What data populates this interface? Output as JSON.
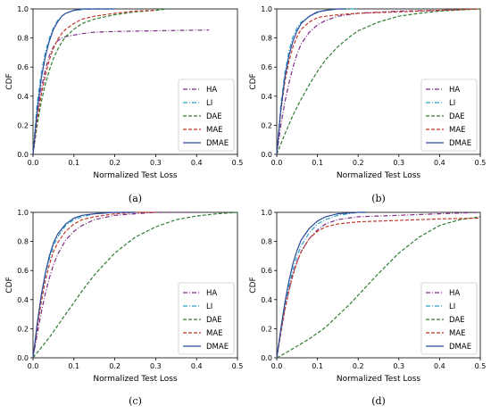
{
  "chart_data": [
    {
      "type": "line",
      "caption": "(a)",
      "xlabel": "Normalized Test Loss",
      "ylabel": "CDF",
      "xlim": [
        0,
        0.5
      ],
      "ylim": [
        0,
        1.0
      ],
      "xticks": [
        "0.0",
        "0.1",
        "0.2",
        "0.3",
        "0.4",
        "0.5"
      ],
      "yticks": [
        "0.0",
        "0.2",
        "0.4",
        "0.6",
        "0.8",
        "1.0"
      ],
      "legend_position": "lower-right",
      "series": [
        {
          "name": "HA",
          "color": "#7b2d84",
          "dash": "dashdot",
          "x": [
            0,
            0.01,
            0.02,
            0.03,
            0.04,
            0.05,
            0.06,
            0.07,
            0.08,
            0.1,
            0.12,
            0.15,
            0.2,
            0.3,
            0.43
          ],
          "y": [
            0,
            0.28,
            0.45,
            0.58,
            0.68,
            0.74,
            0.78,
            0.8,
            0.81,
            0.82,
            0.83,
            0.84,
            0.845,
            0.85,
            0.855
          ]
        },
        {
          "name": "LI",
          "color": "#2aa1c4",
          "dash": "dashdot",
          "x": [
            0,
            0.01,
            0.02,
            0.03,
            0.04,
            0.05,
            0.06,
            0.07,
            0.08,
            0.1,
            0.12,
            0.15,
            0.2
          ],
          "y": [
            0,
            0.35,
            0.56,
            0.7,
            0.8,
            0.87,
            0.92,
            0.95,
            0.97,
            0.99,
            0.995,
            1.0,
            1.0
          ]
        },
        {
          "name": "DAE",
          "color": "#2f7d32",
          "dash": "dashed",
          "x": [
            0,
            0.01,
            0.02,
            0.03,
            0.04,
            0.05,
            0.06,
            0.07,
            0.08,
            0.1,
            0.12,
            0.15,
            0.2,
            0.25,
            0.3,
            0.33
          ],
          "y": [
            0,
            0.2,
            0.36,
            0.48,
            0.58,
            0.66,
            0.72,
            0.77,
            0.81,
            0.86,
            0.9,
            0.93,
            0.96,
            0.98,
            0.99,
            1.0
          ]
        },
        {
          "name": "MAE",
          "color": "#c0392b",
          "dash": "dashed",
          "x": [
            0,
            0.01,
            0.02,
            0.03,
            0.04,
            0.05,
            0.06,
            0.07,
            0.08,
            0.1,
            0.12,
            0.15,
            0.2,
            0.25,
            0.3
          ],
          "y": [
            0,
            0.24,
            0.41,
            0.54,
            0.65,
            0.73,
            0.79,
            0.83,
            0.86,
            0.9,
            0.93,
            0.95,
            0.97,
            0.985,
            0.99
          ]
        },
        {
          "name": "DMAE",
          "color": "#2c4a9a",
          "dash": "solid",
          "x": [
            0,
            0.01,
            0.02,
            0.03,
            0.04,
            0.05,
            0.06,
            0.07,
            0.08,
            0.1,
            0.12,
            0.14,
            0.2
          ],
          "y": [
            0,
            0.3,
            0.52,
            0.67,
            0.78,
            0.86,
            0.91,
            0.95,
            0.97,
            0.99,
            1.0,
            1.0,
            1.0
          ]
        }
      ]
    },
    {
      "type": "line",
      "caption": "(b)",
      "xlabel": "Normalized Test Loss",
      "ylabel": "CDF",
      "xlim": [
        0,
        0.5
      ],
      "ylim": [
        0,
        1.0
      ],
      "xticks": [
        "0.0",
        "0.1",
        "0.2",
        "0.3",
        "0.4",
        "0.5"
      ],
      "yticks": [
        "0.0",
        "0.2",
        "0.4",
        "0.6",
        "0.8",
        "1.0"
      ],
      "legend_position": "lower-right",
      "series": [
        {
          "name": "HA",
          "color": "#7b2d84",
          "dash": "dashdot",
          "x": [
            0,
            0.01,
            0.02,
            0.03,
            0.04,
            0.05,
            0.06,
            0.08,
            0.1,
            0.12,
            0.15,
            0.2,
            0.3,
            0.4,
            0.49
          ],
          "y": [
            0,
            0.2,
            0.36,
            0.49,
            0.6,
            0.69,
            0.76,
            0.84,
            0.89,
            0.92,
            0.95,
            0.97,
            0.985,
            0.99,
            1.0
          ]
        },
        {
          "name": "LI",
          "color": "#2aa1c4",
          "dash": "dashdot",
          "x": [
            0,
            0.01,
            0.02,
            0.03,
            0.04,
            0.05,
            0.06,
            0.08,
            0.1,
            0.12,
            0.15,
            0.2
          ],
          "y": [
            0,
            0.34,
            0.56,
            0.71,
            0.81,
            0.87,
            0.91,
            0.95,
            0.975,
            0.99,
            1.0,
            1.0
          ]
        },
        {
          "name": "DAE",
          "color": "#2f7d32",
          "dash": "dashed",
          "x": [
            0,
            0.02,
            0.04,
            0.06,
            0.08,
            0.1,
            0.12,
            0.15,
            0.18,
            0.2,
            0.25,
            0.3,
            0.35,
            0.4,
            0.5
          ],
          "y": [
            0,
            0.14,
            0.27,
            0.38,
            0.48,
            0.57,
            0.65,
            0.74,
            0.81,
            0.85,
            0.91,
            0.95,
            0.97,
            0.985,
            1.0
          ]
        },
        {
          "name": "MAE",
          "color": "#c0392b",
          "dash": "dashed",
          "x": [
            0,
            0.01,
            0.02,
            0.03,
            0.04,
            0.05,
            0.06,
            0.08,
            0.1,
            0.12,
            0.15,
            0.2,
            0.3,
            0.4,
            0.5
          ],
          "y": [
            0,
            0.3,
            0.5,
            0.64,
            0.74,
            0.81,
            0.86,
            0.91,
            0.94,
            0.95,
            0.96,
            0.97,
            0.98,
            0.99,
            1.0
          ]
        },
        {
          "name": "DMAE",
          "color": "#2c4a9a",
          "dash": "solid",
          "x": [
            0,
            0.01,
            0.02,
            0.03,
            0.04,
            0.05,
            0.06,
            0.08,
            0.1,
            0.12,
            0.15,
            0.17
          ],
          "y": [
            0,
            0.31,
            0.53,
            0.68,
            0.78,
            0.85,
            0.9,
            0.95,
            0.98,
            0.99,
            1.0,
            1.0
          ]
        }
      ]
    },
    {
      "type": "line",
      "caption": "(c)",
      "xlabel": "Normalized Test Loss",
      "ylabel": "CDF",
      "xlim": [
        0,
        0.5
      ],
      "ylim": [
        0,
        1.0
      ],
      "xticks": [
        "0.0",
        "0.1",
        "0.2",
        "0.3",
        "0.4",
        "0.5"
      ],
      "yticks": [
        "0.0",
        "0.2",
        "0.4",
        "0.6",
        "0.8",
        "1.0"
      ],
      "legend_position": "lower-right",
      "series": [
        {
          "name": "HA",
          "color": "#7b2d84",
          "dash": "dashdot",
          "x": [
            0,
            0.01,
            0.02,
            0.03,
            0.04,
            0.05,
            0.06,
            0.08,
            0.1,
            0.12,
            0.15,
            0.2,
            0.25,
            0.3,
            0.4
          ],
          "y": [
            0,
            0.16,
            0.31,
            0.44,
            0.55,
            0.64,
            0.71,
            0.81,
            0.87,
            0.91,
            0.95,
            0.98,
            0.99,
            1.0,
            1.0
          ]
        },
        {
          "name": "LI",
          "color": "#2aa1c4",
          "dash": "dashdot",
          "x": [
            0,
            0.01,
            0.02,
            0.03,
            0.04,
            0.05,
            0.06,
            0.08,
            0.1,
            0.12,
            0.15,
            0.2,
            0.25
          ],
          "y": [
            0,
            0.22,
            0.42,
            0.57,
            0.68,
            0.77,
            0.83,
            0.91,
            0.95,
            0.97,
            0.99,
            1.0,
            1.0
          ]
        },
        {
          "name": "DAE",
          "color": "#2f7d32",
          "dash": "dashed",
          "x": [
            0,
            0.02,
            0.04,
            0.06,
            0.08,
            0.1,
            0.12,
            0.15,
            0.18,
            0.2,
            0.25,
            0.3,
            0.35,
            0.4,
            0.45,
            0.5
          ],
          "y": [
            0,
            0.07,
            0.14,
            0.22,
            0.3,
            0.38,
            0.46,
            0.57,
            0.66,
            0.72,
            0.83,
            0.9,
            0.95,
            0.975,
            0.99,
            1.0
          ]
        },
        {
          "name": "MAE",
          "color": "#c0392b",
          "dash": "dashed",
          "x": [
            0,
            0.01,
            0.02,
            0.03,
            0.04,
            0.05,
            0.06,
            0.08,
            0.1,
            0.12,
            0.15,
            0.2,
            0.25,
            0.3
          ],
          "y": [
            0,
            0.2,
            0.38,
            0.53,
            0.64,
            0.73,
            0.79,
            0.87,
            0.92,
            0.95,
            0.97,
            0.99,
            1.0,
            1.0
          ]
        },
        {
          "name": "DMAE",
          "color": "#2c4a9a",
          "dash": "solid",
          "x": [
            0,
            0.01,
            0.02,
            0.03,
            0.04,
            0.05,
            0.06,
            0.08,
            0.1,
            0.12,
            0.15,
            0.2,
            0.25
          ],
          "y": [
            0,
            0.23,
            0.43,
            0.58,
            0.7,
            0.79,
            0.85,
            0.92,
            0.96,
            0.98,
            0.99,
            1.0,
            1.0
          ]
        }
      ]
    },
    {
      "type": "line",
      "caption": "(d)",
      "xlabel": "Normalized Test Loss",
      "ylabel": "CDF",
      "xlim": [
        0,
        0.5
      ],
      "ylim": [
        0,
        1.0
      ],
      "xticks": [
        "0.0",
        "0.1",
        "0.2",
        "0.3",
        "0.4",
        "0.5"
      ],
      "yticks": [
        "0.0",
        "0.2",
        "0.4",
        "0.6",
        "0.8",
        "1.0"
      ],
      "legend_position": "lower-right",
      "series": [
        {
          "name": "HA",
          "color": "#7b2d84",
          "dash": "dashdot",
          "x": [
            0,
            0.01,
            0.02,
            0.03,
            0.04,
            0.05,
            0.06,
            0.08,
            0.1,
            0.12,
            0.15,
            0.2,
            0.3,
            0.4,
            0.5
          ],
          "y": [
            0,
            0.18,
            0.34,
            0.47,
            0.58,
            0.66,
            0.73,
            0.82,
            0.88,
            0.92,
            0.95,
            0.97,
            0.98,
            0.99,
            1.0
          ]
        },
        {
          "name": "LI",
          "color": "#2aa1c4",
          "dash": "dashdot",
          "x": [
            0,
            0.01,
            0.02,
            0.03,
            0.04,
            0.05,
            0.06,
            0.08,
            0.1,
            0.12,
            0.15,
            0.2,
            0.22
          ],
          "y": [
            0,
            0.18,
            0.35,
            0.49,
            0.61,
            0.7,
            0.77,
            0.86,
            0.92,
            0.95,
            0.98,
            1.0,
            1.0
          ]
        },
        {
          "name": "DAE",
          "color": "#2f7d32",
          "dash": "dashed",
          "x": [
            0,
            0.02,
            0.05,
            0.08,
            0.1,
            0.12,
            0.15,
            0.18,
            0.2,
            0.25,
            0.3,
            0.35,
            0.4,
            0.45,
            0.5
          ],
          "y": [
            0,
            0.03,
            0.08,
            0.13,
            0.17,
            0.21,
            0.29,
            0.37,
            0.43,
            0.58,
            0.72,
            0.83,
            0.91,
            0.95,
            0.97
          ]
        },
        {
          "name": "MAE",
          "color": "#c0392b",
          "dash": "dashed",
          "x": [
            0,
            0.01,
            0.02,
            0.03,
            0.04,
            0.05,
            0.06,
            0.08,
            0.1,
            0.12,
            0.15,
            0.2,
            0.3,
            0.4,
            0.5
          ],
          "y": [
            0,
            0.17,
            0.33,
            0.46,
            0.57,
            0.66,
            0.73,
            0.82,
            0.87,
            0.9,
            0.92,
            0.935,
            0.945,
            0.955,
            0.96
          ]
        },
        {
          "name": "DMAE",
          "color": "#2c4a9a",
          "dash": "solid",
          "x": [
            0,
            0.01,
            0.02,
            0.03,
            0.04,
            0.05,
            0.06,
            0.08,
            0.1,
            0.12,
            0.15,
            0.2,
            0.22
          ],
          "y": [
            0,
            0.2,
            0.38,
            0.53,
            0.65,
            0.74,
            0.81,
            0.89,
            0.94,
            0.97,
            0.99,
            1.0,
            1.0
          ]
        }
      ]
    }
  ]
}
